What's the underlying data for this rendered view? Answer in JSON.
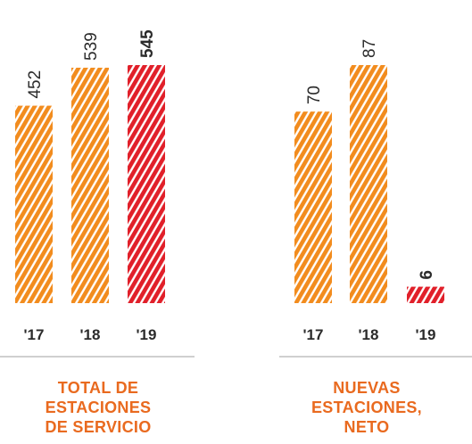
{
  "colors": {
    "orange": "#f28c1e",
    "red": "#e1202a",
    "text": "#2b2b2b",
    "caption": "#e96a1f",
    "divider": "#b3b3b3"
  },
  "chart_data": [
    {
      "type": "bar",
      "title": "TOTAL DE ESTACIONES DE SERVICIO",
      "title_lines": [
        "TOTAL DE",
        "ESTACIONES",
        "DE SERVICIO"
      ],
      "categories": [
        "'17",
        "'18",
        "'19"
      ],
      "values": [
        452,
        539,
        545
      ],
      "value_labels": [
        "452",
        "539",
        "545"
      ],
      "highlight": [
        false,
        false,
        true
      ],
      "style": "hatched",
      "ylim": [
        0,
        545
      ]
    },
    {
      "type": "bar",
      "title": "NUEVAS ESTACIONES, NETO",
      "title_lines": [
        "NUEVAS",
        "ESTACIONES,",
        "NETO"
      ],
      "categories": [
        "'17",
        "'18",
        "'19"
      ],
      "values": [
        70,
        87,
        6
      ],
      "value_labels": [
        "70",
        "87",
        "6"
      ],
      "highlight": [
        false,
        false,
        true
      ],
      "style": "hatched",
      "ylim": [
        0,
        87
      ]
    }
  ]
}
